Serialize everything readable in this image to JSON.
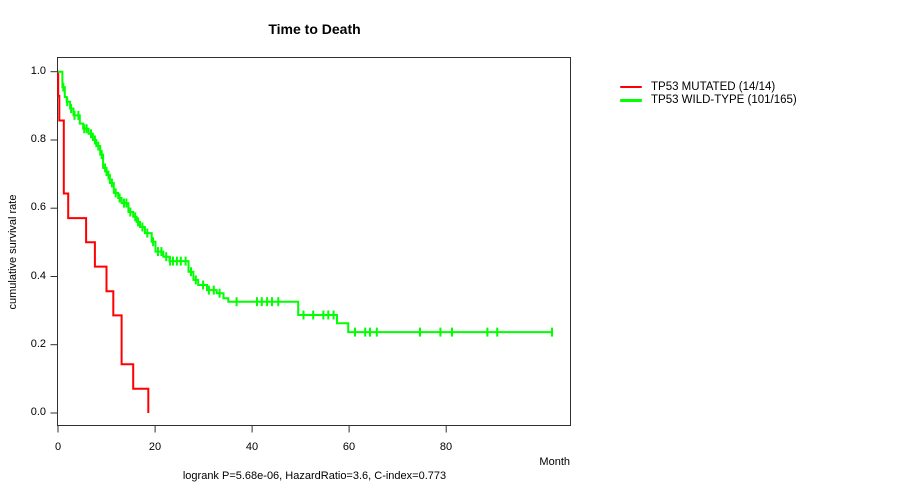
{
  "title": "Time to Death",
  "caption": "logrank P=5.68e-06, HazardRatio=3.6, C-index=0.773",
  "axes": {
    "x": {
      "label": "Month",
      "tick_labels": [
        "0",
        "20",
        "40",
        "60",
        "80"
      ],
      "tick_values": [
        0,
        20,
        40,
        60,
        80
      ]
    },
    "y": {
      "label": "cumulative survival rate",
      "tick_labels": [
        "0.0",
        "0.2",
        "0.4",
        "0.6",
        "0.8",
        "1.0"
      ],
      "tick_values": [
        0,
        0.2,
        0.4,
        0.6,
        0.8,
        1.0
      ]
    }
  },
  "legend": {
    "items": [
      {
        "label": "TP53 MUTATED (14/14)",
        "color": "#ff0000"
      },
      {
        "label": "TP53 WILD-TYPE (101/165)",
        "color": "#00ff00"
      }
    ]
  },
  "colors": {
    "axis": "#303030",
    "text": "#000000",
    "background": "#ffffff",
    "mutated": "#ff0000",
    "wildtype": "#00ff00"
  },
  "chart_data": {
    "type": "line",
    "subtype": "kaplan-meier-step-survival",
    "title": "Time to Death",
    "xlabel": "Month",
    "ylabel": "cumulative survival rate",
    "xlim": [
      0,
      105.6
    ],
    "ylim": [
      0.0,
      1.0
    ],
    "x_ticks": [
      0,
      20,
      40,
      60,
      80
    ],
    "y_ticks": [
      0,
      0.2,
      0.4,
      0.6,
      0.8,
      1.0
    ],
    "grid": false,
    "legend_position": "right-outside",
    "stats": {
      "logrank_p": "5.68e-06",
      "hazard_ratio": "3.6",
      "c_index": "0.773"
    },
    "series": [
      {
        "name": "TP53 MUTATED (14/14)",
        "color": "#ff0000",
        "steps": [
          [
            0,
            1.0
          ],
          [
            0.05,
            0.929
          ],
          [
            0.27,
            0.857
          ],
          [
            1.2,
            0.643
          ],
          [
            2.1,
            0.571
          ],
          [
            5.8,
            0.5
          ],
          [
            7.6,
            0.429
          ],
          [
            10.0,
            0.357
          ],
          [
            11.4,
            0.286
          ],
          [
            13.1,
            0.143
          ],
          [
            15.5,
            0.071
          ],
          [
            18.6,
            0.0
          ]
        ],
        "censor_marks": []
      },
      {
        "name": "TP53 WILD-TYPE (101/165)",
        "color": "#00ff00",
        "steps": [
          [
            0,
            1.0
          ],
          [
            0.9,
            0.955
          ],
          [
            1.4,
            0.926
          ],
          [
            1.8,
            0.912
          ],
          [
            2.5,
            0.892
          ],
          [
            3.2,
            0.872
          ],
          [
            4.5,
            0.848
          ],
          [
            5.2,
            0.833
          ],
          [
            6.3,
            0.818
          ],
          [
            7.2,
            0.8
          ],
          [
            7.9,
            0.782
          ],
          [
            8.7,
            0.757
          ],
          [
            9.3,
            0.718
          ],
          [
            10.0,
            0.697
          ],
          [
            10.7,
            0.674
          ],
          [
            11.5,
            0.645
          ],
          [
            12.4,
            0.63
          ],
          [
            13.1,
            0.615
          ],
          [
            14.5,
            0.589
          ],
          [
            15.5,
            0.575
          ],
          [
            16.2,
            0.56
          ],
          [
            16.9,
            0.545
          ],
          [
            17.9,
            0.527
          ],
          [
            19.3,
            0.502
          ],
          [
            20.1,
            0.473
          ],
          [
            21.7,
            0.458
          ],
          [
            23.0,
            0.445
          ],
          [
            26.9,
            0.414
          ],
          [
            27.9,
            0.39
          ],
          [
            28.9,
            0.375
          ],
          [
            30.7,
            0.36
          ],
          [
            32.7,
            0.351
          ],
          [
            34.1,
            0.336
          ],
          [
            35.1,
            0.326
          ],
          [
            49.5,
            0.287
          ],
          [
            57.5,
            0.263
          ],
          [
            59.8,
            0.237
          ],
          [
            102.0,
            0.237
          ]
        ],
        "censor_marks": [
          1.1,
          1.9,
          2.7,
          3.4,
          4.2,
          5.4,
          5.9,
          6.8,
          7.6,
          8.3,
          9.0,
          9.7,
          10.4,
          11.1,
          11.9,
          12.7,
          13.6,
          14.1,
          14.9,
          15.9,
          16.5,
          17.4,
          18.4,
          19.6,
          20.6,
          21.3,
          22.3,
          23.1,
          23.7,
          24.5,
          25.3,
          26.3,
          27.4,
          28.4,
          29.9,
          31.1,
          32.1,
          33.3,
          36.8,
          41.0,
          42.0,
          43.1,
          44.1,
          45.4,
          50.6,
          52.6,
          54.7,
          55.7,
          56.8,
          61.2,
          63.3,
          64.3,
          65.7,
          74.6,
          78.8,
          81.2,
          88.5,
          90.5,
          101.8
        ]
      }
    ]
  }
}
